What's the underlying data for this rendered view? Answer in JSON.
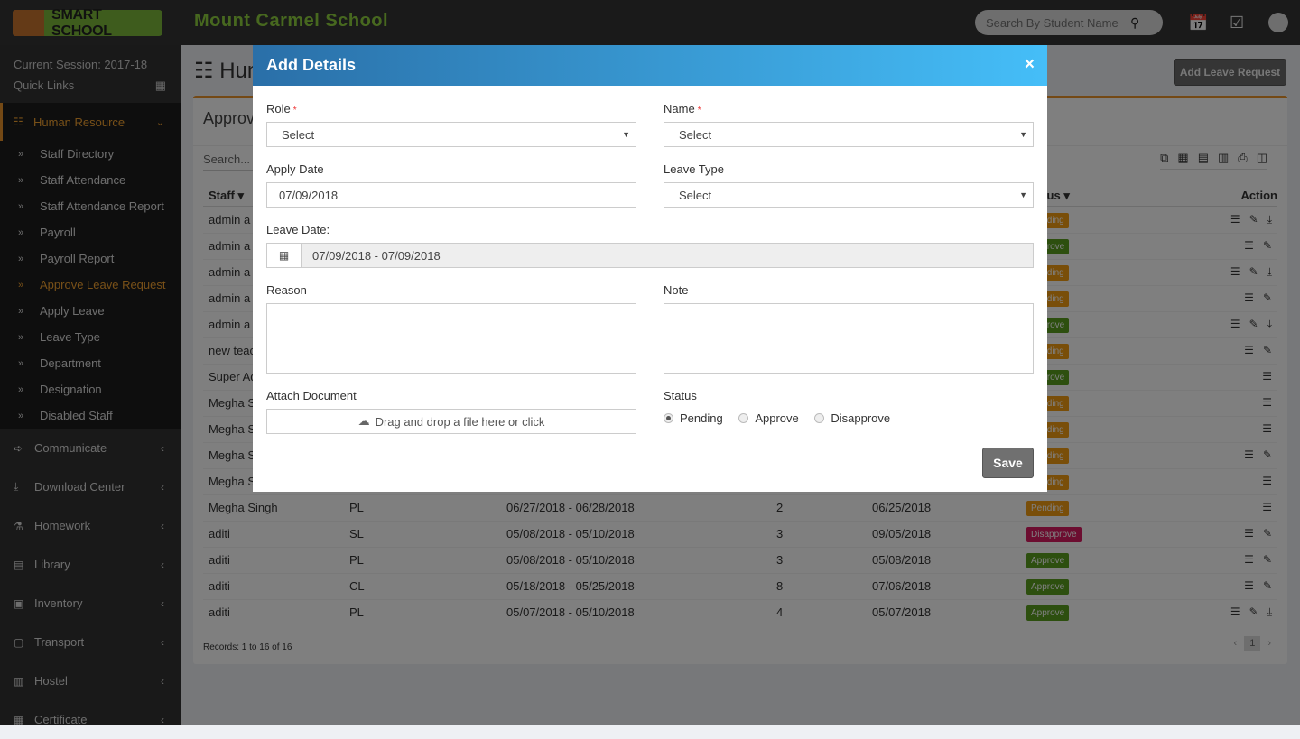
{
  "topbar": {
    "logo_text": "SMART SCHOOL",
    "school_name": "Mount Carmel School",
    "search_placeholder": "Search By Student Name",
    "icons": [
      "calendar-icon",
      "check-square-icon",
      "avatar"
    ]
  },
  "sidebar": {
    "session": "Current Session: 2017-18",
    "quick_links": "Quick Links",
    "active_menu": {
      "label": "Human Resource",
      "icon": "sitemap-icon"
    },
    "sub_items": [
      {
        "label": "Staff Directory"
      },
      {
        "label": "Staff Attendance"
      },
      {
        "label": "Staff Attendance Report"
      },
      {
        "label": "Payroll"
      },
      {
        "label": "Payroll Report"
      },
      {
        "label": "Approve Leave Request",
        "active": true
      },
      {
        "label": "Apply Leave"
      },
      {
        "label": "Leave Type"
      },
      {
        "label": "Department"
      },
      {
        "label": "Designation"
      },
      {
        "label": "Disabled Staff"
      }
    ],
    "items": [
      {
        "label": "Communicate",
        "icon": "➪"
      },
      {
        "label": "Download Center",
        "icon": "⤓"
      },
      {
        "label": "Homework",
        "icon": "⚗"
      },
      {
        "label": "Library",
        "icon": "▤"
      },
      {
        "label": "Inventory",
        "icon": "▣"
      },
      {
        "label": "Transport",
        "icon": "▢"
      },
      {
        "label": "Hostel",
        "icon": "▥"
      },
      {
        "label": "Certificate",
        "icon": "▦"
      }
    ]
  },
  "page": {
    "title": "Human Resource",
    "add_button": "Add Leave Request",
    "box_title": "Approve Leave Request",
    "search_placeholder": "Search...",
    "export_icons": [
      "copy-icon",
      "excel-icon",
      "csv-icon",
      "pdf-icon",
      "print-icon",
      "columns-icon"
    ],
    "headers": {
      "staff": "Staff",
      "status": "Status",
      "action": "Action"
    },
    "rows": [
      {
        "staff": "admin a",
        "status": "Pending",
        "actions": [
          "list",
          "edit",
          "download"
        ]
      },
      {
        "staff": "admin a",
        "status": "Approve",
        "actions": [
          "list",
          "edit"
        ]
      },
      {
        "staff": "admin a",
        "status": "Pending",
        "actions": [
          "list",
          "edit",
          "download"
        ]
      },
      {
        "staff": "admin a",
        "status": "Pending",
        "actions": [
          "list",
          "edit"
        ]
      },
      {
        "staff": "admin a",
        "status": "Approve",
        "actions": [
          "list",
          "edit",
          "download"
        ]
      },
      {
        "staff": "new teac",
        "status": "Pending",
        "actions": [
          "list",
          "edit"
        ]
      },
      {
        "staff": "Super Ad",
        "status": "Approve",
        "actions": [
          "list"
        ]
      },
      {
        "staff": "Megha S",
        "status": "Pending",
        "actions": [
          "list"
        ]
      },
      {
        "staff": "Megha S",
        "status": "Pending",
        "actions": [
          "list"
        ]
      },
      {
        "staff": "Megha S",
        "status": "Pending",
        "actions": [
          "list",
          "edit"
        ]
      },
      {
        "staff": "Megha S",
        "status": "Pending",
        "actions": [
          "list"
        ]
      },
      {
        "staff": "Megha Singh",
        "type": "PL",
        "leave_date": "06/27/2018 - 06/28/2018",
        "days": "2",
        "apply_date": "06/25/2018",
        "status": "Pending",
        "actions": [
          "list"
        ]
      },
      {
        "staff": "aditi",
        "type": "SL",
        "leave_date": "05/08/2018 - 05/10/2018",
        "days": "3",
        "apply_date": "09/05/2018",
        "status": "Disapprove",
        "actions": [
          "list",
          "edit"
        ]
      },
      {
        "staff": "aditi",
        "type": "PL",
        "leave_date": "05/08/2018 - 05/10/2018",
        "days": "3",
        "apply_date": "05/08/2018",
        "status": "Approve",
        "actions": [
          "list",
          "edit"
        ]
      },
      {
        "staff": "aditi",
        "type": "CL",
        "leave_date": "05/18/2018 - 05/25/2018",
        "days": "8",
        "apply_date": "07/06/2018",
        "status": "Approve",
        "actions": [
          "list",
          "edit"
        ]
      },
      {
        "staff": "aditi",
        "type": "PL",
        "leave_date": "05/07/2018 - 05/10/2018",
        "days": "4",
        "apply_date": "05/07/2018",
        "status": "Approve",
        "actions": [
          "list",
          "edit",
          "download"
        ]
      }
    ],
    "records": "Records: 1 to 16 of 16",
    "page_number": "1",
    "status_colors": {
      "Pending": "#f39c12",
      "Approve": "#5a9e1f",
      "Disapprove": "#d81b60"
    }
  },
  "modal": {
    "title": "Add Details",
    "close": "×",
    "role_label": "Role",
    "role_value": "Select",
    "name_label": "Name",
    "name_value": "Select",
    "apply_date_label": "Apply Date",
    "apply_date_value": "07/09/2018",
    "leave_type_label": "Leave Type",
    "leave_type_value": "Select",
    "leave_date_label": "Leave Date:",
    "leave_date_value": "07/09/2018 - 07/09/2018",
    "reason_label": "Reason",
    "note_label": "Note",
    "attach_label": "Attach Document",
    "attach_text": "Drag and drop a file here or click",
    "status_label": "Status",
    "status_options": [
      "Pending",
      "Approve",
      "Disapprove"
    ],
    "status_selected": "Pending",
    "save": "Save",
    "required_mark": "*"
  }
}
